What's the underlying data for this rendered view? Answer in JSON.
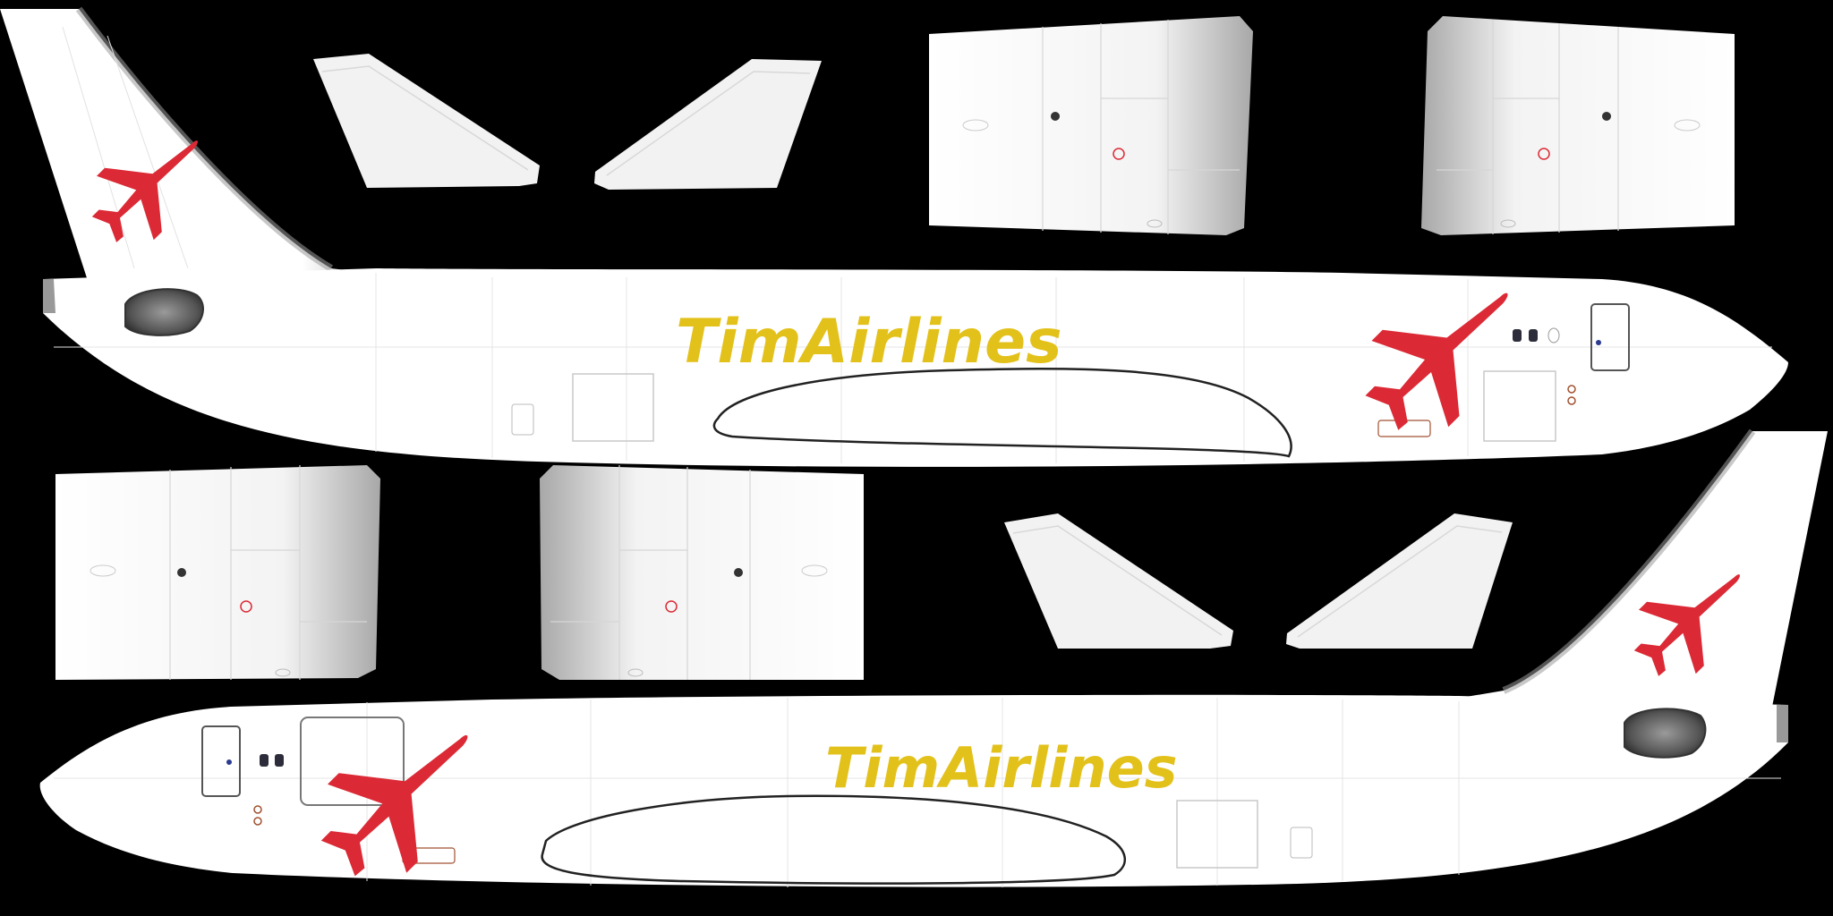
{
  "texture": {
    "background_color": "#000000",
    "panel_color": "#ffffff",
    "wing_color": "#f2f2f2",
    "panel_line_color": "#d4d4d4",
    "outline_color": "#1a1a1a"
  },
  "livery": {
    "brand_name": "TimAirlines",
    "brand_color": "#e3c11b",
    "logo_color": "#db2a35",
    "logo_icon": "airplane-icon"
  },
  "parts": {
    "upper_fuselage": {
      "airline_title": "TimAirlines"
    },
    "lower_fuselage": {
      "airline_title": "TimAirlines"
    }
  }
}
